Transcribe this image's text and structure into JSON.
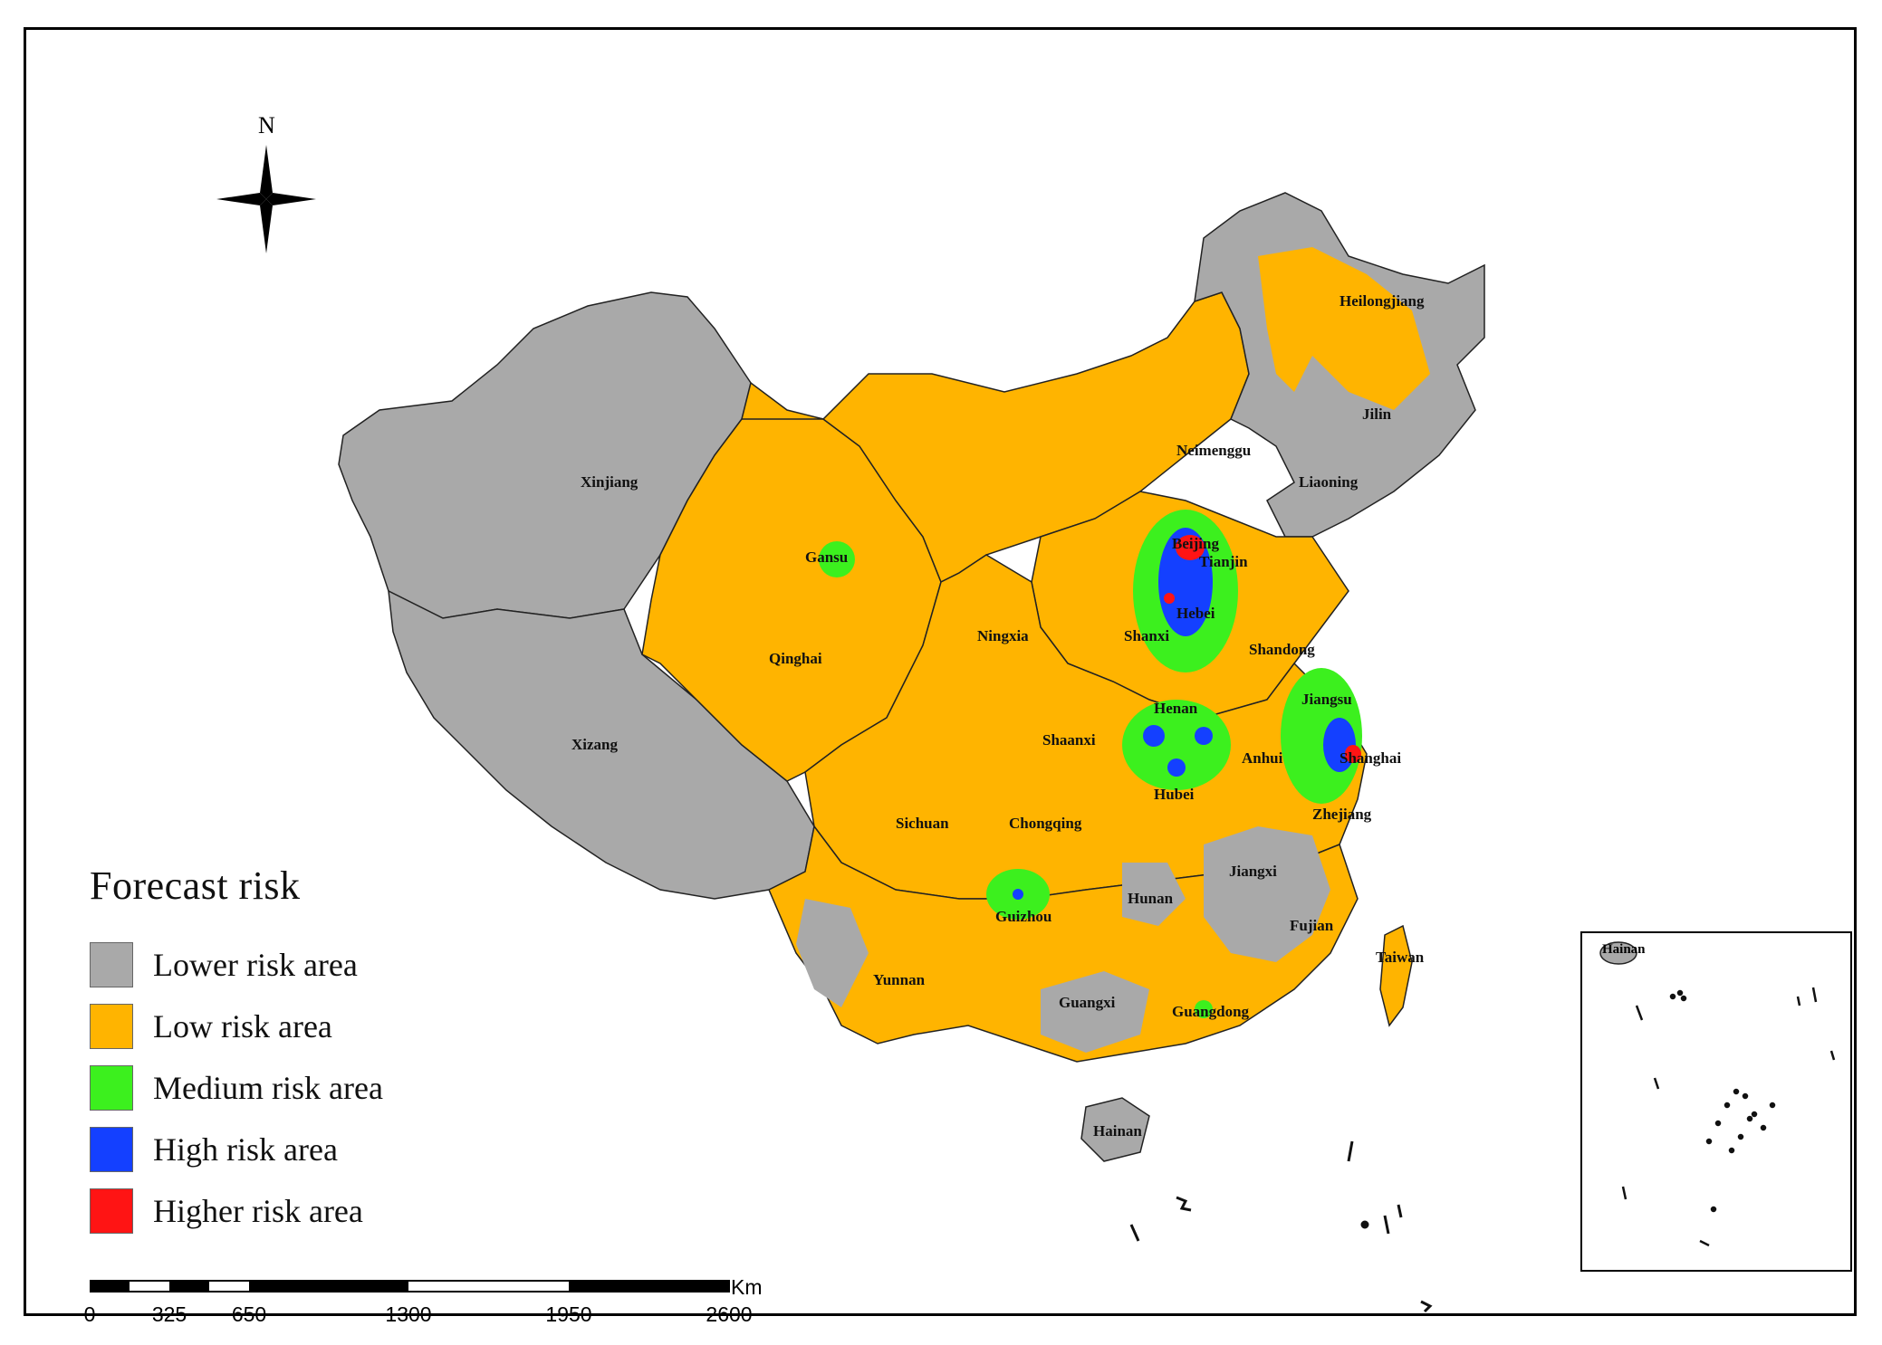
{
  "map": {
    "colors": {
      "lower": "#a9a9a9",
      "low": "#ffb400",
      "medium": "#3cf01e",
      "high": "#1440ff",
      "higher": "#ff1414",
      "border": "#222222"
    },
    "provinces": {
      "xinjiang": "Xinjiang",
      "xizang": "Xizang",
      "qinghai": "Qinghai",
      "gansu": "Gansu",
      "neimenggu": "Neimenggu",
      "heilongjiang": "Heilongjiang",
      "jilin": "Jilin",
      "liaoning": "Liaoning",
      "beijing": "Beijing",
      "tianjin": "Tianjin",
      "hebei": "Hebei",
      "shanxi": "Shanxi",
      "ningxia": "Ningxia",
      "shaanxi": "Shaanxi",
      "shandong": "Shandong",
      "henan": "Henan",
      "jiangsu": "Jiangsu",
      "anhui": "Anhui",
      "shanghai": "Shanghai",
      "hubei": "Hubei",
      "sichuan": "Sichuan",
      "chongqing": "Chongqing",
      "zhejiang": "Zhejiang",
      "hunan": "Hunan",
      "jiangxi": "Jiangxi",
      "guizhou": "Guizhou",
      "fujian": "Fujian",
      "taiwan": "Taiwan",
      "yunnan": "Yunnan",
      "guangxi": "Guangxi",
      "guangdong": "Guangdong",
      "hainan": "Hainan"
    },
    "inset_label": "Hainan"
  },
  "north_arrow": {
    "label": "N"
  },
  "legend": {
    "title": "Forecast risk",
    "items": [
      {
        "label": "Lower risk area",
        "color": "#a9a9a9"
      },
      {
        "label": "Low risk area",
        "color": "#ffb400"
      },
      {
        "label": "Medium risk area",
        "color": "#3cf01e"
      },
      {
        "label": "High risk area",
        "color": "#1440ff"
      },
      {
        "label": "Higher risk area",
        "color": "#ff1414"
      }
    ]
  },
  "scale_bar": {
    "unit": "Km",
    "ticks": [
      "0",
      "325",
      "650",
      "1300",
      "1950",
      "2600"
    ]
  }
}
